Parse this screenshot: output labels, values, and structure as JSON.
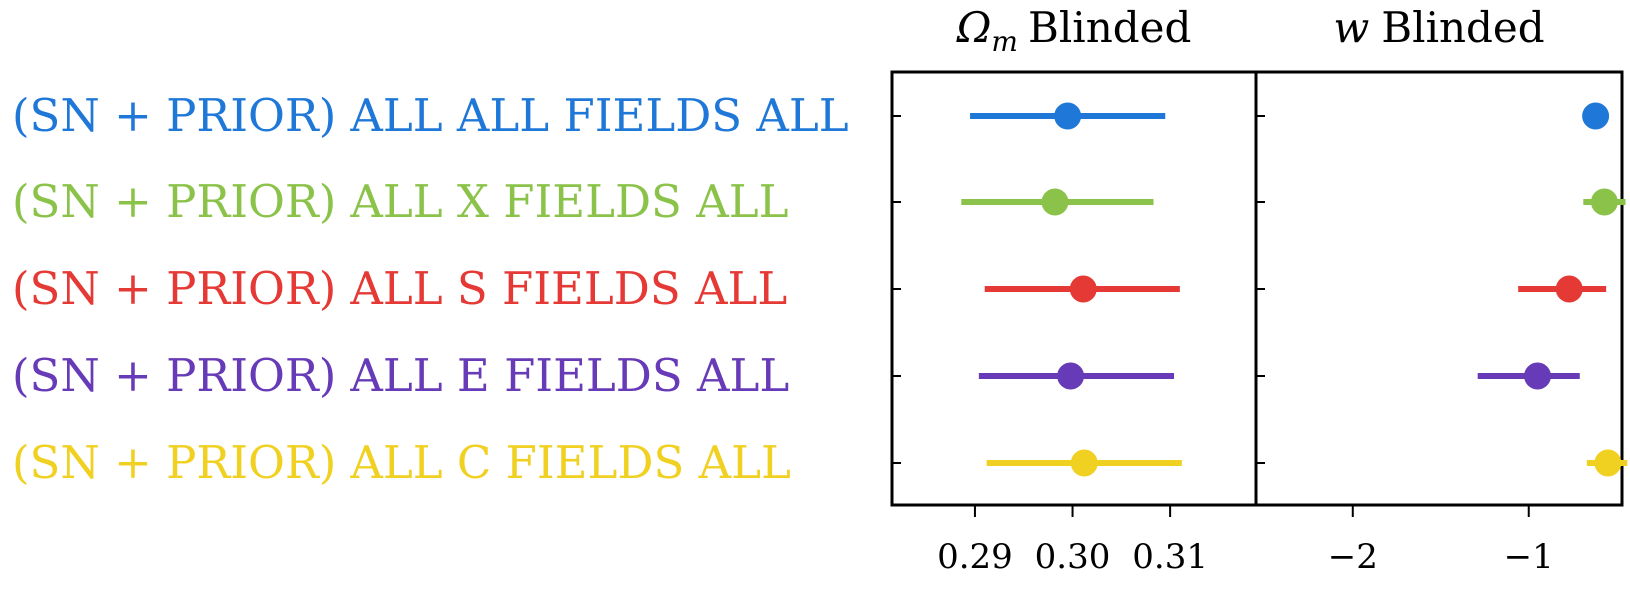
{
  "chart_data": {
    "type": "scatter",
    "rows": [
      {
        "prefix": "(SN + PRIOR)",
        "label": "ALL ALL FIELDS ALL",
        "color": "#1f78d8"
      },
      {
        "prefix": "(SN + PRIOR)",
        "label": "ALL X FIELDS ALL",
        "color": "#8bc34a"
      },
      {
        "prefix": "(SN + PRIOR)",
        "label": "ALL S FIELDS ALL",
        "color": "#e53935"
      },
      {
        "prefix": "(SN + PRIOR)",
        "label": "ALL E FIELDS ALL",
        "color": "#673ab7"
      },
      {
        "prefix": "(SN + PRIOR)",
        "label": "ALL C FIELDS ALL",
        "color": "#f0d020"
      }
    ],
    "panels": [
      {
        "title_symbol": "Ω",
        "title_subscript": "m",
        "title_text": "Blinded",
        "xlim": [
          0.2815,
          0.3188
        ],
        "ticks": [
          0.29,
          0.3,
          0.31
        ],
        "tick_labels": [
          "0.29",
          "0.30",
          "0.31"
        ],
        "points": [
          {
            "value": 0.2995,
            "low": 0.2895,
            "high": 0.3095
          },
          {
            "value": 0.2982,
            "low": 0.2886,
            "high": 0.3083
          },
          {
            "value": 0.3011,
            "low": 0.291,
            "high": 0.311
          },
          {
            "value": 0.2998,
            "low": 0.2904,
            "high": 0.3104
          },
          {
            "value": 0.3012,
            "low": 0.2912,
            "high": 0.3112
          }
        ]
      },
      {
        "title_symbol": "w",
        "title_subscript": "",
        "title_text": "Blinded",
        "xlim": [
          -2.55,
          -0.47
        ],
        "ticks": [
          -2,
          -1
        ],
        "tick_labels": [
          "−2",
          "−1"
        ],
        "points": [
          {
            "value": -0.62,
            "low": -0.64,
            "high": -0.6
          },
          {
            "value": -0.57,
            "low": -0.69,
            "high": -0.45
          },
          {
            "value": -0.77,
            "low": -1.06,
            "high": -0.56
          },
          {
            "value": -0.95,
            "low": -1.29,
            "high": -0.71
          },
          {
            "value": -0.55,
            "low": -0.67,
            "high": -0.44
          }
        ]
      }
    ]
  }
}
